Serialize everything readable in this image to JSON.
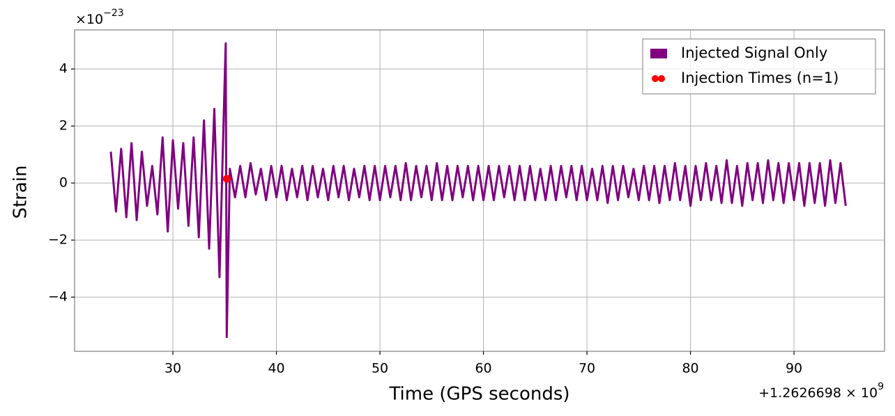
{
  "chart_data": {
    "type": "line",
    "xlabel": "Time (GPS seconds)",
    "ylabel": "Strain",
    "y_offset_label": {
      "base": "×10",
      "exponent": "−23"
    },
    "x_offset_label": {
      "base": "+1.2626698 × 10",
      "exponent": "9"
    },
    "xlim": [
      20.5,
      98.75
    ],
    "ylim": [
      -5.9,
      5.37
    ],
    "xticks": [
      30,
      40,
      50,
      60,
      70,
      80,
      90
    ],
    "yticks": [
      {
        "value": -4,
        "label": "−4"
      },
      {
        "value": -2,
        "label": "−2"
      },
      0,
      2,
      4
    ],
    "grid": true,
    "legend": "upper right",
    "series": [
      {
        "name": "Injected Signal Only",
        "type": "line",
        "color": "#800080",
        "x": [
          24,
          24.5,
          25,
          25.5,
          26,
          26.5,
          27,
          27.5,
          28,
          28.5,
          29,
          29.5,
          30,
          30.5,
          31,
          31.5,
          32,
          32.5,
          33,
          33.5,
          34,
          34.5,
          35,
          35.1,
          35.2,
          35.5,
          36,
          36.5,
          37,
          37.5,
          38,
          38.5,
          39,
          39.5,
          40,
          40.5,
          41,
          41.5,
          42,
          42.5,
          43,
          43.5,
          44,
          44.5,
          45,
          45.5,
          46,
          46.5,
          47,
          47.5,
          48,
          48.5,
          49,
          49.5,
          50,
          50.5,
          51,
          51.5,
          52,
          52.5,
          53,
          53.5,
          54,
          54.5,
          55,
          55.5,
          56,
          56.5,
          57,
          57.5,
          58,
          58.5,
          59,
          59.5,
          60,
          60.5,
          61,
          61.5,
          62,
          62.5,
          63,
          63.5,
          64,
          64.5,
          65,
          65.5,
          66,
          66.5,
          67,
          67.5,
          68,
          68.5,
          69,
          69.5,
          70,
          70.5,
          71,
          71.5,
          72,
          72.5,
          73,
          73.5,
          74,
          74.5,
          75,
          75.5,
          76,
          76.5,
          77,
          77.5,
          78,
          78.5,
          79,
          79.5,
          80,
          80.5,
          81,
          81.5,
          82,
          82.5,
          83,
          83.5,
          84,
          84.5,
          85,
          85.5,
          86,
          86.5,
          87,
          87.5,
          88,
          88.5,
          89,
          89.5,
          90,
          90.5,
          91,
          91.5,
          92,
          92.5,
          93,
          93.5,
          94,
          94.5,
          95
        ],
        "values": [
          1.1,
          -1.0,
          1.2,
          -1.2,
          1.4,
          -1.3,
          1.1,
          -0.8,
          0.6,
          -1.1,
          1.6,
          -1.7,
          1.5,
          -0.9,
          1.4,
          -1.5,
          1.6,
          -1.9,
          2.2,
          -2.3,
          2.6,
          -3.3,
          3.6,
          4.9,
          -5.4,
          0.5,
          -0.5,
          0.6,
          -0.5,
          0.7,
          -0.4,
          0.5,
          -0.6,
          0.6,
          -0.5,
          0.6,
          -0.6,
          0.5,
          -0.5,
          0.6,
          -0.6,
          0.6,
          -0.5,
          0.5,
          -0.6,
          0.6,
          -0.5,
          0.6,
          -0.6,
          0.5,
          -0.5,
          0.6,
          -0.6,
          0.6,
          -0.6,
          0.6,
          -0.5,
          0.6,
          -0.6,
          0.7,
          -0.6,
          0.6,
          -0.5,
          0.6,
          -0.6,
          0.7,
          -0.6,
          0.6,
          -0.6,
          0.6,
          -0.5,
          0.6,
          -0.6,
          0.6,
          -0.6,
          0.6,
          -0.6,
          0.6,
          -0.5,
          0.6,
          -0.6,
          0.6,
          -0.6,
          0.6,
          -0.6,
          0.5,
          -0.6,
          0.6,
          -0.6,
          0.6,
          -0.5,
          0.6,
          -0.6,
          0.6,
          -0.6,
          0.5,
          -0.6,
          0.6,
          -0.7,
          0.6,
          -0.6,
          0.6,
          -0.5,
          0.5,
          -0.6,
          0.6,
          -0.6,
          0.6,
          -0.7,
          0.6,
          -0.6,
          0.7,
          -0.6,
          0.6,
          -0.8,
          0.6,
          -0.6,
          0.7,
          -0.6,
          0.6,
          -0.7,
          0.8,
          -0.7,
          0.6,
          -0.8,
          0.7,
          -0.6,
          0.7,
          -0.7,
          0.8,
          -0.6,
          0.7,
          -0.7,
          0.7,
          -0.6,
          0.7,
          -0.8,
          0.7,
          -0.7,
          0.7,
          -0.8,
          0.8,
          -0.7,
          0.7,
          -0.8
        ]
      },
      {
        "name": "Injection Times (n=1)",
        "type": "scatter",
        "color": "#ff0000",
        "x": [
          35.2
        ],
        "values": [
          0.15
        ]
      }
    ]
  }
}
